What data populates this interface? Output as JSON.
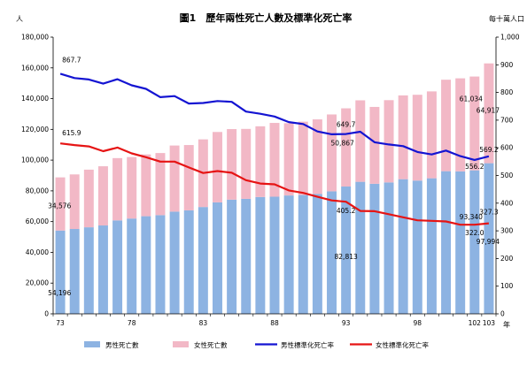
{
  "chart_data": {
    "type": "bar",
    "title": "圖1　歷年兩性死亡人數及標準化死亡率",
    "left_unit": "人",
    "right_unit": "每十萬人口",
    "x_unit": "年",
    "categories": [
      73,
      74,
      75,
      76,
      77,
      78,
      79,
      80,
      81,
      82,
      83,
      84,
      85,
      86,
      87,
      88,
      89,
      90,
      91,
      92,
      93,
      94,
      95,
      96,
      97,
      98,
      99,
      100,
      101,
      102,
      103
    ],
    "x_tick_labels": [
      "73",
      "78",
      "83",
      "88",
      "93",
      "98",
      "102",
      "103"
    ],
    "y_left": {
      "min": 0,
      "max": 180000,
      "ticks": [
        "0",
        "20,000",
        "40,000",
        "60,000",
        "80,000",
        "100,000",
        "120,000",
        "140,000",
        "160,000",
        "180,000"
      ]
    },
    "y_right": {
      "min": 0,
      "max": 1000,
      "ticks": [
        "0",
        "100",
        "200",
        "300",
        "400",
        "500",
        "600",
        "700",
        "800",
        "900",
        "1,000"
      ]
    },
    "series": [
      {
        "name": "男性死亡數",
        "kind": "stacked-bar",
        "color": "#8db3e2",
        "values": [
          54196,
          55200,
          56300,
          57500,
          60800,
          62000,
          63500,
          64200,
          66500,
          67300,
          69500,
          72500,
          74300,
          74800,
          76000,
          76200,
          77000,
          77300,
          78000,
          79700,
          82813,
          85900,
          84600,
          85500,
          87600,
          86700,
          88200,
          92800,
          92700,
          93340,
          97994
        ]
      },
      {
        "name": "女性死亡數",
        "kind": "stacked-bar",
        "color": "#f2b8c6",
        "values": [
          34576,
          35500,
          37500,
          38500,
          40500,
          40000,
          40200,
          40400,
          43000,
          42500,
          44000,
          45800,
          45900,
          45500,
          46000,
          48000,
          47000,
          47700,
          48500,
          50000,
          50867,
          53000,
          50000,
          53500,
          54500,
          55800,
          56500,
          59500,
          60500,
          61034,
          64917
        ]
      },
      {
        "name": "男性標準化死亡率",
        "kind": "line",
        "axis": "right",
        "color": "#1414d2",
        "values": [
          867.7,
          852,
          847,
          832,
          848,
          826,
          813,
          783,
          787,
          760,
          762,
          769,
          766,
          731,
          723,
          713,
          693,
          686,
          659,
          649,
          649.7,
          658,
          620,
          612,
          606,
          585,
          576,
          590,
          570,
          556.2,
          569.2
        ]
      },
      {
        "name": "女性標準化死亡率",
        "kind": "line",
        "axis": "right",
        "color": "#e61414",
        "values": [
          615.9,
          610,
          605,
          588,
          601,
          580,
          566,
          550,
          550,
          529,
          509,
          516,
          510,
          483,
          471,
          468,
          446,
          437,
          423,
          410,
          405.2,
          372,
          371,
          360,
          349,
          338,
          336,
          334,
          322,
          322.0,
          327.3
        ]
      }
    ],
    "data_labels": {
      "male_deaths": [
        "54,196",
        "82,813",
        "93,340",
        "97,994"
      ],
      "female_deaths": [
        "34,576",
        "50,867",
        "61,034",
        "64,917"
      ],
      "male_rate": [
        "867.7",
        "649.7",
        "556.2",
        "569.2"
      ],
      "female_rate": [
        "615.9",
        "405.2",
        "322.0",
        "327.3"
      ]
    }
  }
}
